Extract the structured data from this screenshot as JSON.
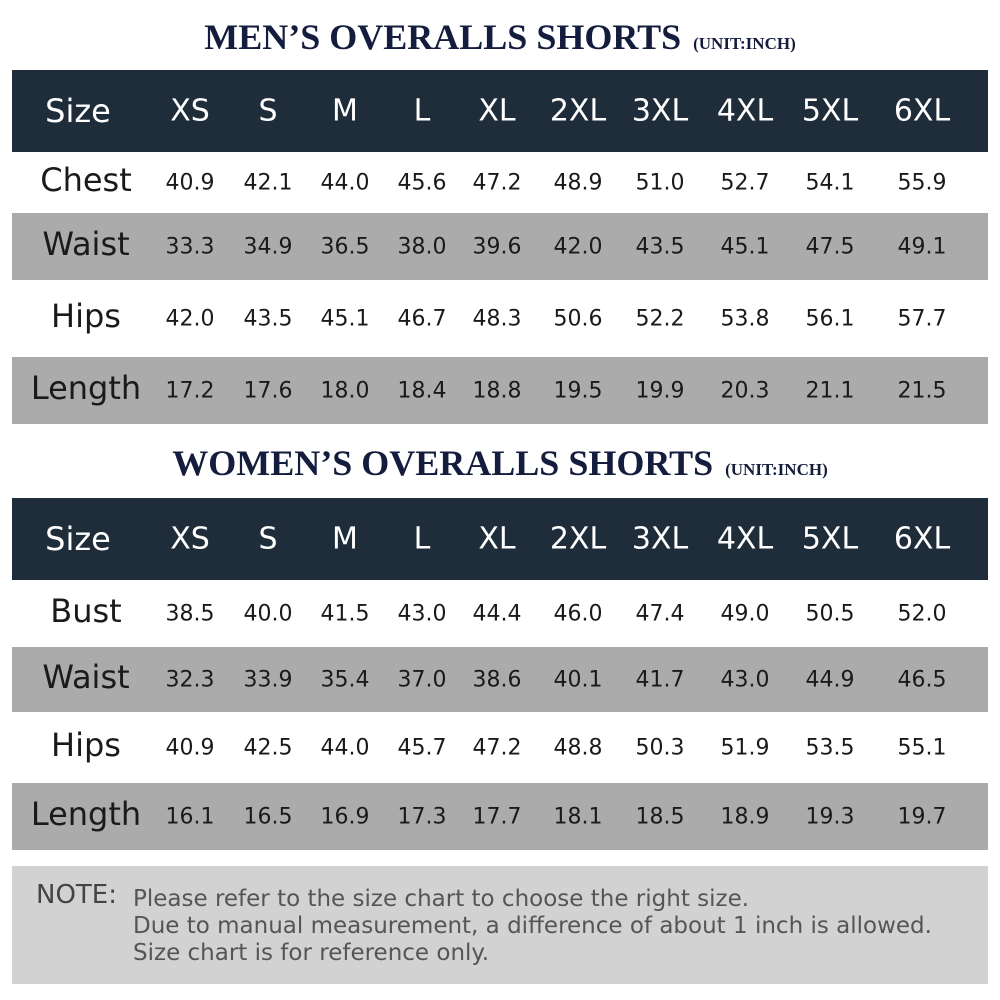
{
  "men": {
    "title": "MEN’S OVERALLS SHORTS",
    "unit": "(UNIT:INCH)",
    "header": [
      "Size",
      "XS",
      "S",
      "M",
      "L",
      "XL",
      "2XL",
      "3XL",
      "4XL",
      "5XL",
      "6XL"
    ],
    "rows": [
      [
        "Chest",
        "40.9",
        "42.1",
        "44.0",
        "45.6",
        "47.2",
        "48.9",
        "51.0",
        "52.7",
        "54.1",
        "55.9"
      ],
      [
        "Waist",
        "33.3",
        "34.9",
        "36.5",
        "38.0",
        "39.6",
        "42.0",
        "43.5",
        "45.1",
        "47.5",
        "49.1"
      ],
      [
        "Hips",
        "42.0",
        "43.5",
        "45.1",
        "46.7",
        "48.3",
        "50.6",
        "52.2",
        "53.8",
        "56.1",
        "57.7"
      ],
      [
        "Length",
        "17.2",
        "17.6",
        "18.0",
        "18.4",
        "18.8",
        "19.5",
        "19.9",
        "20.3",
        "21.1",
        "21.5"
      ]
    ]
  },
  "women": {
    "title": "WOMEN’S OVERALLS SHORTS",
    "unit": "(UNIT:INCH)",
    "header": [
      "Size",
      "XS",
      "S",
      "M",
      "L",
      "XL",
      "2XL",
      "3XL",
      "4XL",
      "5XL",
      "6XL"
    ],
    "rows": [
      [
        "Bust",
        "38.5",
        "40.0",
        "41.5",
        "43.0",
        "44.4",
        "46.0",
        "47.4",
        "49.0",
        "50.5",
        "52.0"
      ],
      [
        "Waist",
        "32.3",
        "33.9",
        "35.4",
        "37.0",
        "38.6",
        "40.1",
        "41.7",
        "43.0",
        "44.9",
        "46.5"
      ],
      [
        "Hips",
        "40.9",
        "42.5",
        "44.0",
        "45.7",
        "47.2",
        "48.8",
        "50.3",
        "51.9",
        "53.5",
        "55.1"
      ],
      [
        "Length",
        "16.1",
        "16.5",
        "16.9",
        "17.3",
        "17.7",
        "18.1",
        "18.5",
        "18.9",
        "19.3",
        "19.7"
      ]
    ]
  },
  "note": {
    "label": "NOTE:",
    "lines": [
      "Please refer to the size chart to choose the right size.",
      "Due to manual measurement, a difference of about 1 inch is allowed.",
      "Size chart is for reference only."
    ]
  }
}
